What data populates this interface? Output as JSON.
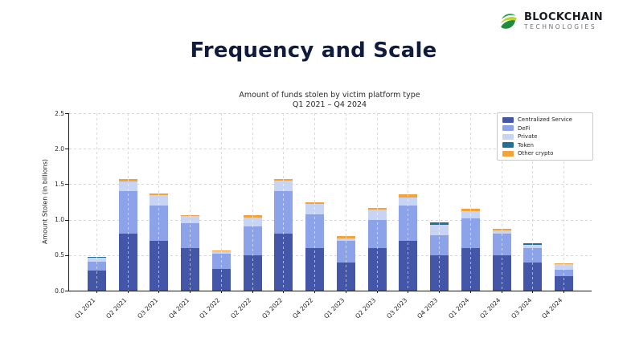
{
  "header": {
    "title": "Frequency and Scale",
    "logo": {
      "line1": "BLOCKCHAIN",
      "line2": "TECHNOLOGIES",
      "icon_colors": [
        "#2aa04c",
        "#bcd531",
        "#1e8c3f"
      ]
    }
  },
  "chart_data": {
    "type": "bar",
    "stacked": true,
    "title": "Amount of funds stolen by victim platform type",
    "subtitle": "Q1 2021 – Q4 2024",
    "ylabel": "Amount Stolen (in billions)",
    "xlabel": "",
    "ylim": [
      0,
      2.5
    ],
    "ytick_labels": [
      "0.0",
      "0.5",
      "1.0",
      "1.5",
      "2.0",
      "2.5"
    ],
    "grid": true,
    "legend_position": "upper right",
    "categories": [
      "Q1 2021",
      "Q2 2021",
      "Q3 2021",
      "Q4 2021",
      "Q1 2022",
      "Q2 2022",
      "Q3 2022",
      "Q4 2022",
      "Q1 2023",
      "Q2 2023",
      "Q3 2023",
      "Q4 2023",
      "Q1 2024",
      "Q2 2024",
      "Q3 2024",
      "Q4 2024"
    ],
    "series": [
      {
        "name": "Centralized Service",
        "color": "#4356a8",
        "values": [
          0.28,
          0.8,
          0.7,
          0.6,
          0.3,
          0.5,
          0.8,
          0.6,
          0.4,
          0.6,
          0.7,
          0.5,
          0.6,
          0.5,
          0.4,
          0.2
        ]
      },
      {
        "name": "DeFi",
        "color": "#8da3e9",
        "values": [
          0.13,
          0.6,
          0.5,
          0.35,
          0.22,
          0.4,
          0.6,
          0.48,
          0.3,
          0.4,
          0.5,
          0.28,
          0.42,
          0.3,
          0.2,
          0.1
        ]
      },
      {
        "name": "Private",
        "color": "#c7d4f4",
        "values": [
          0.05,
          0.14,
          0.15,
          0.1,
          0.03,
          0.13,
          0.15,
          0.14,
          0.04,
          0.14,
          0.11,
          0.15,
          0.1,
          0.05,
          0.05,
          0.07
        ]
      },
      {
        "name": "Token",
        "color": "#1d7295",
        "values": [
          0.02,
          0.0,
          0.0,
          0.0,
          0.0,
          0.0,
          0.0,
          0.0,
          0.0,
          0.0,
          0.0,
          0.03,
          0.0,
          0.0,
          0.02,
          0.0
        ]
      },
      {
        "name": "Other crypto",
        "color": "#f2a43a",
        "values": [
          0.0,
          0.03,
          0.02,
          0.01,
          0.02,
          0.03,
          0.02,
          0.03,
          0.03,
          0.03,
          0.05,
          0.0,
          0.03,
          0.02,
          0.0,
          0.02
        ]
      }
    ],
    "totals": [
      0.48,
      1.57,
      1.37,
      1.06,
      0.57,
      1.06,
      1.57,
      1.25,
      0.77,
      1.17,
      1.36,
      0.96,
      1.15,
      0.87,
      0.67,
      0.39
    ]
  }
}
